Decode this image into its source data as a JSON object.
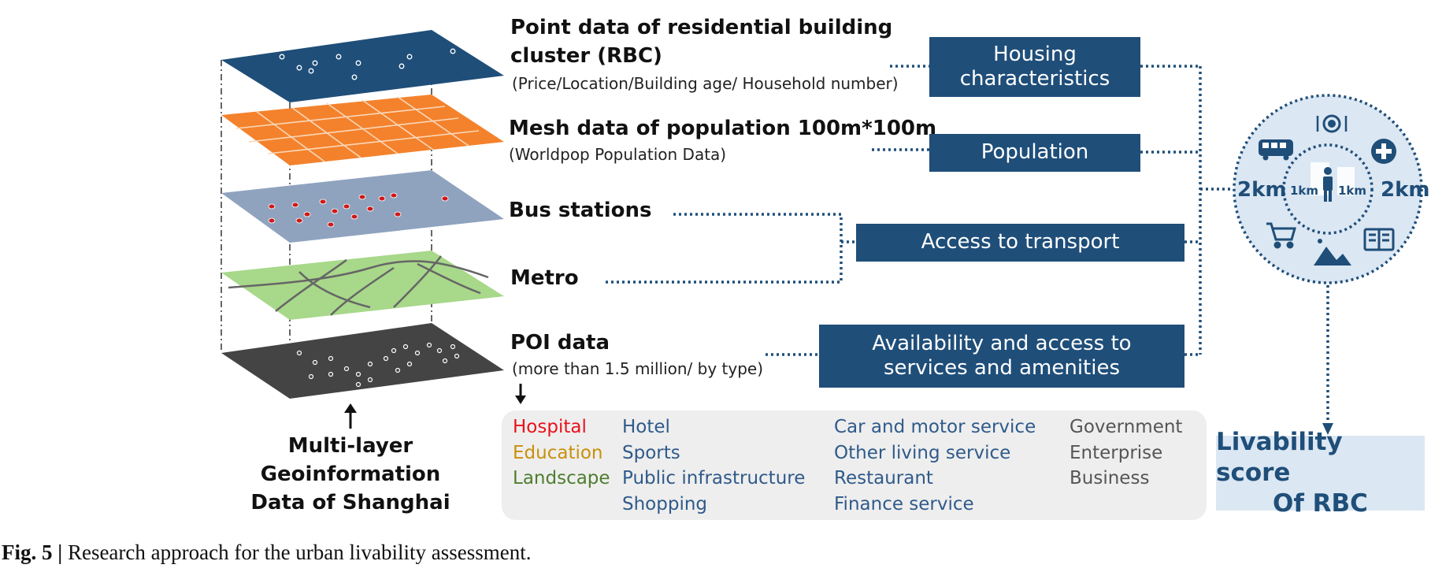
{
  "layers": {
    "rbc": {
      "title_line1": "Point data of residential building",
      "title_line2": "cluster (RBC)",
      "subtitle": "(Price/Location/Building age/ Household number)"
    },
    "population": {
      "title": "Mesh data of population 100m*100m",
      "subtitle": "(Worldpop Population Data)"
    },
    "bus": {
      "title": "Bus stations"
    },
    "metro": {
      "title": "Metro"
    },
    "poi": {
      "title": "POI data",
      "subtitle": "(more than 1.5 million/ by type)"
    }
  },
  "categories": {
    "housing": {
      "line1": "Housing",
      "line2": "characteristics"
    },
    "population": {
      "label": "Population"
    },
    "transport": {
      "label": "Access to transport"
    },
    "services": {
      "line1": "Availability and access to",
      "line2": "services and amenities"
    }
  },
  "poi_types": {
    "col1": [
      {
        "label": "Hospital",
        "color": "#e8131b"
      },
      {
        "label": "Education",
        "color": "#c9900a"
      },
      {
        "label": "Landscape",
        "color": "#4e7d2f"
      }
    ],
    "col2": [
      "Hotel",
      "Sports",
      "Public infrastructure",
      "Shopping"
    ],
    "col3": [
      "Car and motor service",
      "Other living service",
      "Restaurant",
      "Finance service"
    ],
    "col4": [
      "Government",
      "Enterprise",
      "Business"
    ],
    "blue_color": "#2f5a8a",
    "gray_color": "#555555"
  },
  "stack_label": {
    "line1": "Multi-layer",
    "line2": "Geoinformation",
    "line3": "Data of Shanghai"
  },
  "buffer": {
    "outer_left": "2km",
    "outer_right": "2km",
    "inner_left": "1km",
    "inner_right": "1km"
  },
  "score": {
    "line1": "Livability score",
    "line2": "Of RBC"
  },
  "caption": {
    "label": "Fig. 5 |",
    "text": "Research approach for the urban livability assessment."
  },
  "colors": {
    "rbc_layer": "#1f4e79",
    "population_layer": "#f4822c",
    "bus_layer": "#8fa3bf",
    "metro_layer": "#a8d88a",
    "poi_layer": "#444444",
    "category_box": "#1f4e79",
    "score_box": "#dbe7f3",
    "dotted_line": "#1f4e79"
  }
}
